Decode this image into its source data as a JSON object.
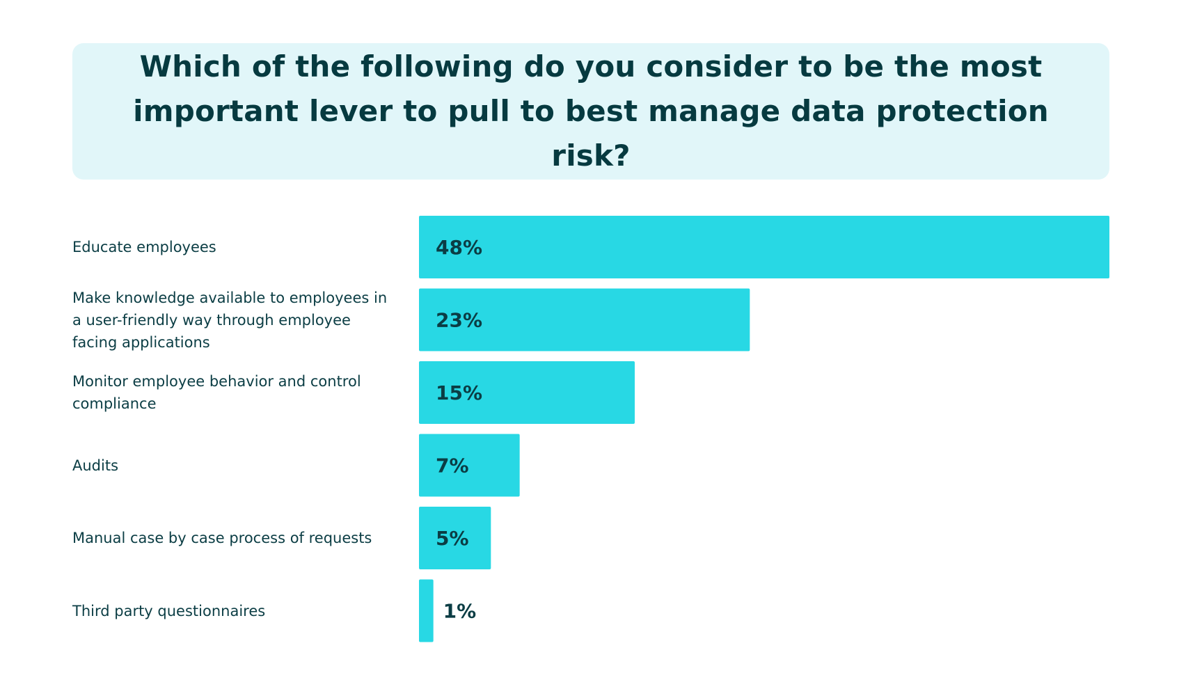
{
  "title": "Which of the following do you consider to be the most important lever to pull to best manage data protection risk?",
  "colors": {
    "bar": "#28d8e4",
    "title_background": "#e1f6f9",
    "text": "#0b3d44"
  },
  "chart_data": {
    "type": "bar",
    "orientation": "horizontal",
    "title": "Which of the following do you consider to be the most important lever to pull to best manage data protection risk?",
    "categories": [
      "Educate employees",
      "Make knowledge available to employees in a user-friendly way through employee facing applications",
      "Monitor employee behavior and control compliance",
      "Audits",
      "Manual case by case process of requests",
      "Third party questionnaires"
    ],
    "values": [
      48,
      23,
      15,
      7,
      5,
      1
    ],
    "value_labels": [
      "48%",
      "23%",
      "15%",
      "7%",
      "5%",
      "1%"
    ],
    "unit": "%",
    "xlim": [
      0,
      48
    ],
    "grid": false,
    "legend": "none"
  }
}
